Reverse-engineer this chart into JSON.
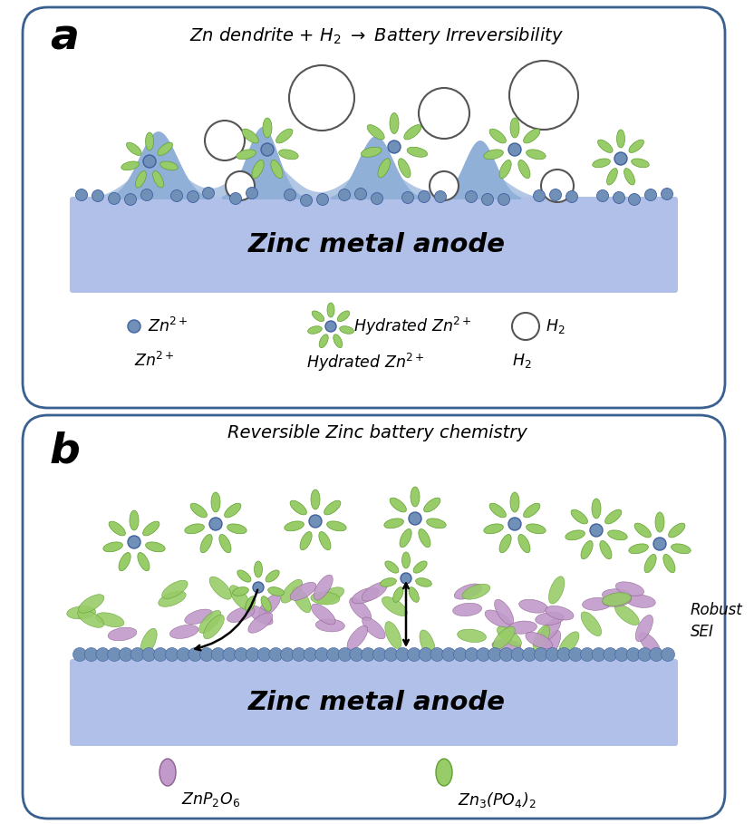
{
  "fig_width": 8.32,
  "fig_height": 9.09,
  "bg_color": "#ffffff",
  "panel_border_color": "#3a6090",
  "anode_color": "#b0c0e8",
  "ball_color": "#7090b8",
  "ball_edge_color": "#4060a0",
  "petal_color": "#98cc68",
  "petal_edge_color": "#60a030",
  "bubble_color": "#ffffff",
  "bubble_edge_color": "#555555",
  "purple_petal_color": "#c09aca",
  "purple_petal_edge": "#906090",
  "dendrite_color": "#90b0d8",
  "title_a": "Zn dendrite + H$_2$ $\\rightarrow$ Battery Irreversibility",
  "title_b": "Reversible Zinc battery chemistry",
  "anode_text": "Zinc metal anode",
  "robust_sei": "Robust\nSEI",
  "zn2_label": "Zn$^{2+}$",
  "hydrated_label": "Hydrated Zn$^{2+}$",
  "h2_label": "H$_2$",
  "znp2o6_label": "ZnP$_2$O$_6$",
  "zn3po4_label": "Zn$_3$(PO$_4$)$_2$",
  "panel_a_label": "a",
  "panel_b_label": "b"
}
